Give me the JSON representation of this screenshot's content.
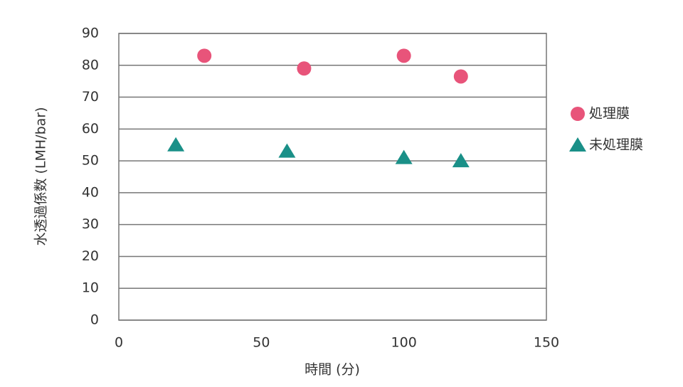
{
  "chart_data": {
    "type": "scatter",
    "xlabel": "時間 (分)",
    "ylabel": "水透過係数 (LMH/bar)",
    "xlim": [
      0,
      150
    ],
    "xticks": [
      0,
      50,
      100,
      150
    ],
    "ylim": [
      0,
      90
    ],
    "yticks": [
      0,
      10,
      20,
      30,
      40,
      50,
      60,
      70,
      80,
      90
    ],
    "grid": true,
    "legend": "right",
    "series": [
      {
        "name": "処理膜",
        "color": "#e8547a",
        "marker": "circle",
        "x": [
          30,
          65,
          100,
          120
        ],
        "values": [
          83,
          79,
          83,
          76.5
        ]
      },
      {
        "name": "未処理膜",
        "color": "#1a9088",
        "marker": "triangle",
        "x": [
          20,
          59,
          100,
          120
        ],
        "values": [
          55,
          53,
          51,
          50
        ]
      }
    ]
  }
}
